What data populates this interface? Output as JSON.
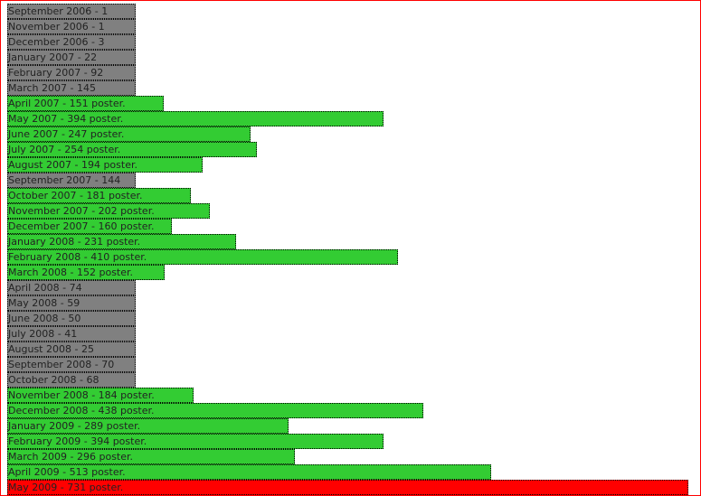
{
  "rows": [
    {
      "label": "September 2006 - 1",
      "value": 1,
      "color": "#808080"
    },
    {
      "label": "November 2006 - 1",
      "value": 1,
      "color": "#808080"
    },
    {
      "label": "December 2006 - 3",
      "value": 3,
      "color": "#808080"
    },
    {
      "label": "January 2007 - 22",
      "value": 22,
      "color": "#808080"
    },
    {
      "label": "February 2007 - 92",
      "value": 92,
      "color": "#808080"
    },
    {
      "label": "March 2007 - 145",
      "value": 145,
      "color": "#808080"
    },
    {
      "label": "April 2007 - 151 poster.",
      "value": 151,
      "color": "#33cc33"
    },
    {
      "label": "May 2007 - 394 poster.",
      "value": 394,
      "color": "#33cc33"
    },
    {
      "label": "June 2007 - 247 poster.",
      "value": 247,
      "color": "#33cc33"
    },
    {
      "label": "July 2007 - 254 poster.",
      "value": 254,
      "color": "#33cc33"
    },
    {
      "label": "August 2007 - 194 poster.",
      "value": 194,
      "color": "#33cc33"
    },
    {
      "label": "September 2007 - 144",
      "value": 144,
      "color": "#808080"
    },
    {
      "label": "October 2007 - 181 poster.",
      "value": 181,
      "color": "#33cc33"
    },
    {
      "label": "November 2007 - 202 poster.",
      "value": 202,
      "color": "#33cc33"
    },
    {
      "label": "December 2007 - 160 poster.",
      "value": 160,
      "color": "#33cc33"
    },
    {
      "label": "January 2008 - 231 poster.",
      "value": 231,
      "color": "#33cc33"
    },
    {
      "label": "February 2008 - 410 poster.",
      "value": 410,
      "color": "#33cc33"
    },
    {
      "label": "March 2008 - 152 poster.",
      "value": 152,
      "color": "#33cc33"
    },
    {
      "label": "April 2008 - 74",
      "value": 74,
      "color": "#808080"
    },
    {
      "label": "May 2008 - 59",
      "value": 59,
      "color": "#808080"
    },
    {
      "label": "June 2008 - 50",
      "value": 50,
      "color": "#808080"
    },
    {
      "label": "July 2008 - 41",
      "value": 41,
      "color": "#808080"
    },
    {
      "label": "August 2008 - 25",
      "value": 25,
      "color": "#808080"
    },
    {
      "label": "September 2008 - 70",
      "value": 70,
      "color": "#808080"
    },
    {
      "label": "October 2008 - 68",
      "value": 68,
      "color": "#808080"
    },
    {
      "label": "November 2008 - 184 poster.",
      "value": 184,
      "color": "#33cc33"
    },
    {
      "label": "December 2008 - 438 poster.",
      "value": 438,
      "color": "#33cc33"
    },
    {
      "label": "January 2009 - 289 poster.",
      "value": 289,
      "color": "#33cc33"
    },
    {
      "label": "February 2009 - 394 poster.",
      "value": 394,
      "color": "#33cc33"
    },
    {
      "label": "March 2009 - 296 poster.",
      "value": 296,
      "color": "#33cc33"
    },
    {
      "label": "April 2009 - 513 poster.",
      "value": 513,
      "color": "#33cc33"
    },
    {
      "label": "May 2009 - 731 poster.",
      "value": 731,
      "color": "#ff0000"
    }
  ]
}
